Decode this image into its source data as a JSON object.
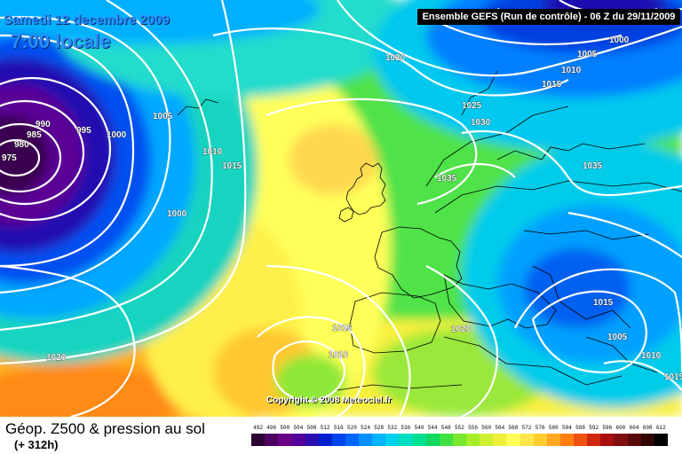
{
  "header": {
    "date": "Samedi 12 decembre 2009",
    "time": "7:00 locale",
    "banner": "Ensemble GEFS (Run de contrôle) - 06 Z du 29/11/2009"
  },
  "footer": {
    "caption": "Géop. Z500 & pression au sol",
    "forecast_hours": "(+ 312h)",
    "copyright": "Copyright © 2008 Meteociel.fr"
  },
  "scale": {
    "values": [
      "492",
      "496",
      "500",
      "504",
      "508",
      "512",
      "516",
      "520",
      "524",
      "528",
      "532",
      "536",
      "540",
      "544",
      "548",
      "552",
      "556",
      "560",
      "564",
      "568",
      "572",
      "576",
      "580",
      "584",
      "588",
      "592",
      "596",
      "600",
      "604",
      "608",
      "612"
    ],
    "colors": [
      "#2b0033",
      "#4d0060",
      "#6a0088",
      "#55009a",
      "#2a0fb0",
      "#0020d0",
      "#0044ee",
      "#0066ff",
      "#0090ff",
      "#00b4ff",
      "#00d2ee",
      "#00e0c0",
      "#00e090",
      "#10d860",
      "#40e040",
      "#7ae82e",
      "#a6ee2a",
      "#cff030",
      "#eef03a",
      "#ffff55",
      "#ffe54a",
      "#ffcc30",
      "#ffa820",
      "#ff8010",
      "#f05010",
      "#d02810",
      "#a81010",
      "#801010",
      "#5a0808",
      "#300404",
      "#000000"
    ]
  },
  "isobar_labels": [
    {
      "text": "975"
    },
    {
      "text": "980"
    },
    {
      "text": "985"
    },
    {
      "text": "990"
    },
    {
      "text": "995"
    },
    {
      "text": "1000"
    },
    {
      "text": "1005"
    },
    {
      "text": "1010"
    },
    {
      "text": "1015"
    },
    {
      "text": "1000"
    },
    {
      "text": "1020"
    },
    {
      "text": "1020"
    },
    {
      "text": "1000"
    },
    {
      "text": "1005"
    },
    {
      "text": "1010"
    },
    {
      "text": "1015"
    },
    {
      "text": "1025"
    },
    {
      "text": "1030"
    },
    {
      "text": "1035"
    },
    {
      "text": "1035"
    },
    {
      "text": "1015"
    },
    {
      "text": "1010"
    },
    {
      "text": "1020"
    },
    {
      "text": "1015"
    },
    {
      "text": "1005"
    },
    {
      "text": "1010"
    },
    {
      "text": "1015"
    }
  ]
}
